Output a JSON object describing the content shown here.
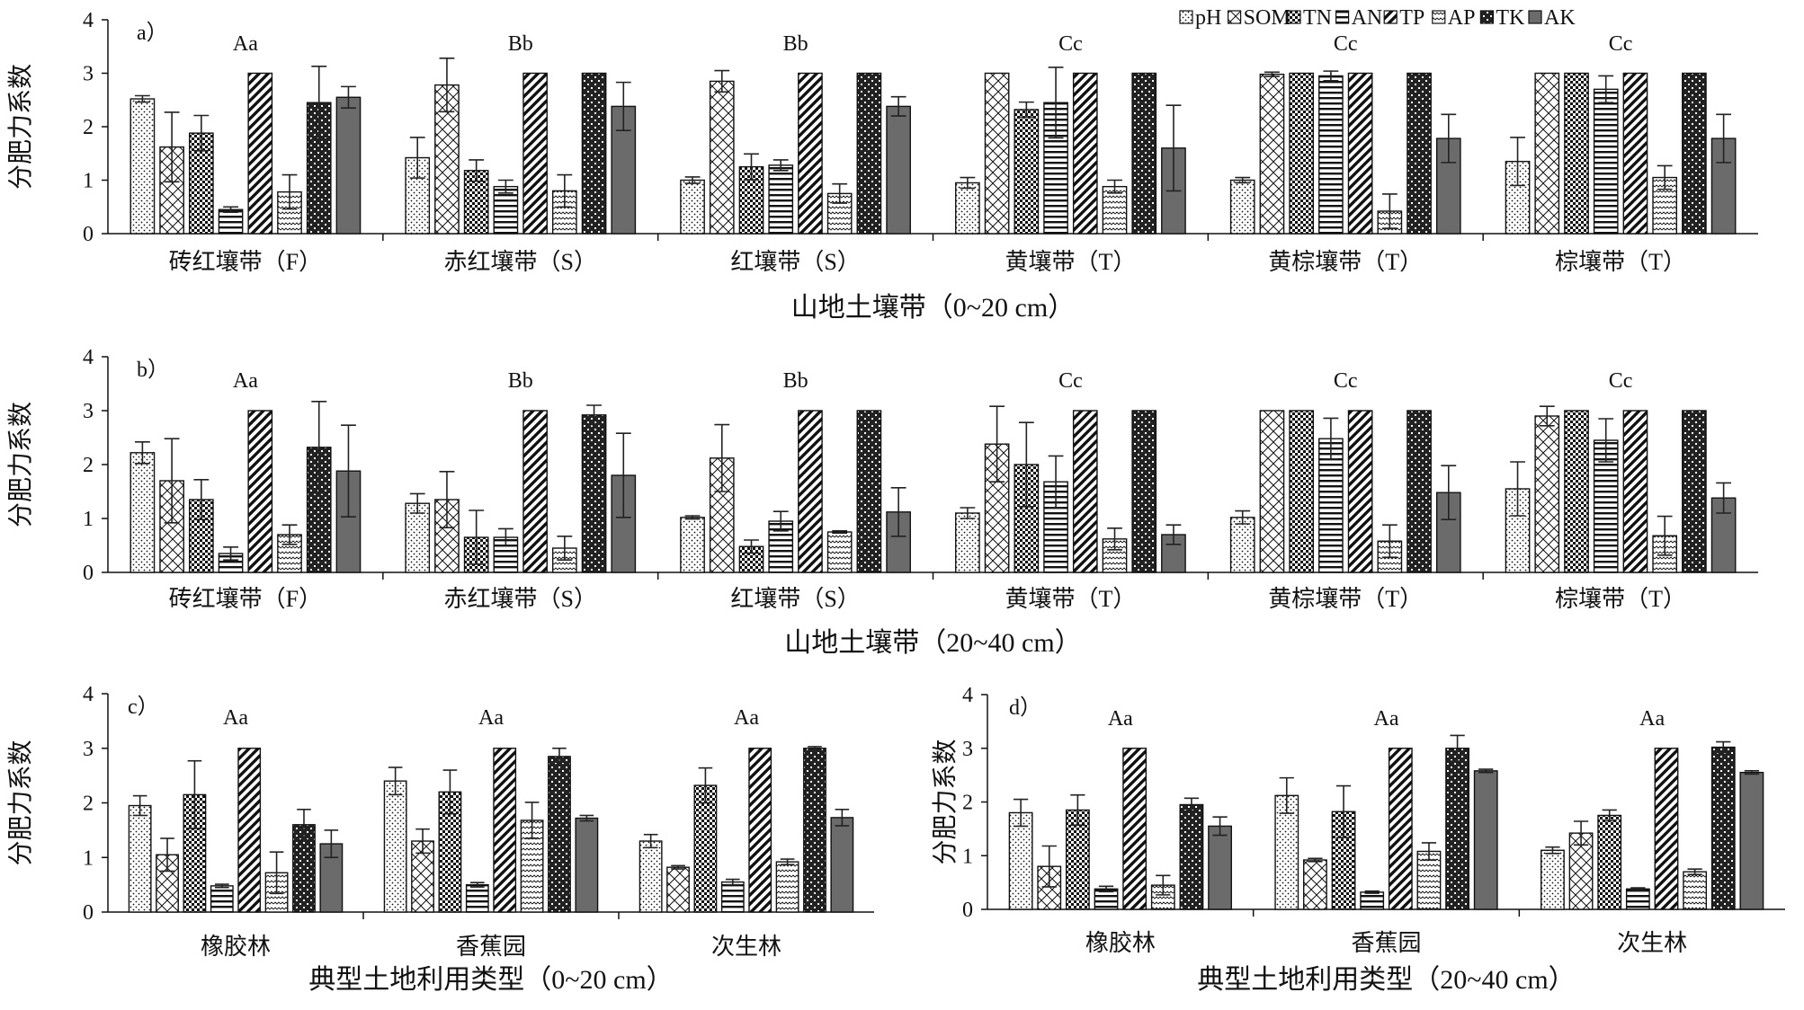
{
  "legend": {
    "items": [
      {
        "key": "pH",
        "label": "pH",
        "pattern": "dots"
      },
      {
        "key": "SOM",
        "label": "SOM",
        "pattern": "cross"
      },
      {
        "key": "TN",
        "label": "TN",
        "pattern": "checker"
      },
      {
        "key": "AN",
        "label": "AN",
        "pattern": "hlines"
      },
      {
        "key": "TP",
        "label": "TP",
        "pattern": "diag"
      },
      {
        "key": "AP",
        "label": "AP",
        "pattern": "zigzag"
      },
      {
        "key": "TK",
        "label": "TK",
        "pattern": "checker2"
      },
      {
        "key": "AK",
        "label": "AK",
        "pattern": "solid"
      }
    ]
  },
  "colors": {
    "axis": "#111111",
    "solid": "#6b6b6b",
    "pattern_ink": "#111111",
    "background": "#ffffff"
  },
  "chart_data": [
    {
      "panel": "a",
      "type": "bar",
      "ylabel": "分肥力系数",
      "xlabel": "山地土壤带（0~20 cm）",
      "ylim": [
        0,
        4
      ],
      "yticks": [
        0,
        1,
        2,
        3,
        4
      ],
      "categories": [
        "砖红壤带（F）",
        "赤红壤带（S）",
        "红壤带（S）",
        "黄壤带（T）",
        "黄棕壤带（T）",
        "棕壤带（T）"
      ],
      "group_labels": [
        "Aa",
        "Bb",
        "Bb",
        "Cc",
        "Cc",
        "Cc"
      ],
      "series": [
        {
          "name": "pH",
          "values": [
            2.52,
            1.42,
            1.0,
            0.95,
            1.0,
            1.35
          ],
          "errors": [
            0.06,
            0.38,
            0.06,
            0.1,
            0.05,
            0.45
          ]
        },
        {
          "name": "SOM",
          "values": [
            1.62,
            2.78,
            2.85,
            3.0,
            2.98,
            3.0
          ],
          "errors": [
            0.65,
            0.5,
            0.2,
            0.0,
            0.04,
            0.0
          ]
        },
        {
          "name": "TN",
          "values": [
            1.88,
            1.18,
            1.25,
            2.32,
            3.0,
            3.0
          ],
          "errors": [
            0.33,
            0.2,
            0.24,
            0.14,
            0.0,
            0.0
          ]
        },
        {
          "name": "AN",
          "values": [
            0.45,
            0.88,
            1.28,
            2.45,
            2.95,
            2.7
          ],
          "errors": [
            0.05,
            0.12,
            0.1,
            0.66,
            0.09,
            0.25
          ]
        },
        {
          "name": "TP",
          "values": [
            3.0,
            3.0,
            3.0,
            3.0,
            3.0,
            3.0
          ],
          "errors": [
            0.0,
            0.0,
            0.0,
            0.0,
            0.0,
            0.0
          ]
        },
        {
          "name": "AP",
          "values": [
            0.78,
            0.8,
            0.75,
            0.88,
            0.42,
            1.05
          ],
          "errors": [
            0.32,
            0.3,
            0.18,
            0.12,
            0.32,
            0.22
          ]
        },
        {
          "name": "TK",
          "values": [
            2.45,
            3.0,
            3.0,
            3.0,
            3.0,
            3.0
          ],
          "errors": [
            0.68,
            0.0,
            0.0,
            0.0,
            0.0,
            0.0
          ]
        },
        {
          "name": "AK",
          "values": [
            2.55,
            2.38,
            2.38,
            1.6,
            1.78,
            1.78
          ],
          "errors": [
            0.2,
            0.45,
            0.18,
            0.8,
            0.45,
            0.45
          ]
        }
      ]
    },
    {
      "panel": "b",
      "type": "bar",
      "ylabel": "分肥力系数",
      "xlabel": "山地土壤带（20~40 cm）",
      "ylim": [
        0,
        4
      ],
      "yticks": [
        0,
        1,
        2,
        3,
        4
      ],
      "categories": [
        "砖红壤带（F）",
        "赤红壤带（S）",
        "红壤带（S）",
        "黄壤带（T）",
        "黄棕壤带（T）",
        "棕壤带（T）"
      ],
      "group_labels": [
        "Aa",
        "Bb",
        "Bb",
        "Cc",
        "Cc",
        "Cc"
      ],
      "series": [
        {
          "name": "pH",
          "values": [
            2.22,
            1.28,
            1.02,
            1.1,
            1.02,
            1.55
          ],
          "errors": [
            0.2,
            0.18,
            0.03,
            0.1,
            0.12,
            0.5
          ]
        },
        {
          "name": "SOM",
          "values": [
            1.7,
            1.35,
            2.12,
            2.38,
            3.0,
            2.9
          ],
          "errors": [
            0.78,
            0.52,
            0.62,
            0.7,
            0.0,
            0.18
          ]
        },
        {
          "name": "TN",
          "values": [
            1.35,
            0.65,
            0.48,
            2.0,
            3.0,
            3.0
          ],
          "errors": [
            0.37,
            0.5,
            0.12,
            0.78,
            0.0,
            0.0
          ]
        },
        {
          "name": "AN",
          "values": [
            0.35,
            0.65,
            0.95,
            1.68,
            2.48,
            2.45
          ],
          "errors": [
            0.12,
            0.16,
            0.18,
            0.48,
            0.38,
            0.4
          ]
        },
        {
          "name": "TP",
          "values": [
            3.0,
            3.0,
            3.0,
            3.0,
            3.0,
            3.0
          ],
          "errors": [
            0.0,
            0.0,
            0.0,
            0.0,
            0.0,
            0.0
          ]
        },
        {
          "name": "AP",
          "values": [
            0.7,
            0.45,
            0.75,
            0.62,
            0.58,
            0.68
          ],
          "errors": [
            0.18,
            0.22,
            0.02,
            0.2,
            0.3,
            0.36
          ]
        },
        {
          "name": "TK",
          "values": [
            2.32,
            2.92,
            3.0,
            3.0,
            3.0,
            3.0
          ],
          "errors": [
            0.85,
            0.18,
            0.0,
            0.0,
            0.0,
            0.0
          ]
        },
        {
          "name": "AK",
          "values": [
            1.88,
            1.8,
            1.12,
            0.7,
            1.48,
            1.38
          ],
          "errors": [
            0.85,
            0.78,
            0.45,
            0.18,
            0.5,
            0.28
          ]
        }
      ]
    },
    {
      "panel": "c",
      "type": "bar",
      "ylabel": "分肥力系数",
      "xlabel": "典型土地利用类型（0~20 cm）",
      "ylim": [
        0,
        4
      ],
      "yticks": [
        0,
        1,
        2,
        3,
        4
      ],
      "categories": [
        "橡胶林",
        "香蕉园",
        "次生林"
      ],
      "group_labels": [
        "Aa",
        "Aa",
        "Aa"
      ],
      "series": [
        {
          "name": "pH",
          "values": [
            1.95,
            2.4,
            1.3
          ],
          "errors": [
            0.18,
            0.25,
            0.12
          ]
        },
        {
          "name": "SOM",
          "values": [
            1.05,
            1.3,
            0.82
          ],
          "errors": [
            0.3,
            0.22,
            0.03
          ]
        },
        {
          "name": "TN",
          "values": [
            2.15,
            2.2,
            2.32
          ],
          "errors": [
            0.62,
            0.4,
            0.32
          ]
        },
        {
          "name": "AN",
          "values": [
            0.48,
            0.5,
            0.55
          ],
          "errors": [
            0.03,
            0.04,
            0.05
          ]
        },
        {
          "name": "TP",
          "values": [
            3.0,
            3.0,
            3.0
          ],
          "errors": [
            0.0,
            0.0,
            0.0
          ]
        },
        {
          "name": "AP",
          "values": [
            0.72,
            1.68,
            0.92
          ],
          "errors": [
            0.38,
            0.33,
            0.05
          ]
        },
        {
          "name": "TK",
          "values": [
            1.6,
            2.85,
            3.0
          ],
          "errors": [
            0.28,
            0.15,
            0.03
          ]
        },
        {
          "name": "AK",
          "values": [
            1.25,
            1.72,
            1.73
          ],
          "errors": [
            0.25,
            0.05,
            0.15
          ]
        }
      ]
    },
    {
      "panel": "d",
      "type": "bar",
      "ylabel": "分肥力系数",
      "xlabel": "典型土地利用类型（20~40 cm）",
      "ylim": [
        0,
        4
      ],
      "yticks": [
        0,
        1,
        2,
        3,
        4
      ],
      "categories": [
        "橡胶林",
        "香蕉园",
        "次生林"
      ],
      "group_labels": [
        "Aa",
        "Aa",
        "Aa"
      ],
      "series": [
        {
          "name": "pH",
          "values": [
            1.8,
            2.12,
            1.1
          ],
          "errors": [
            0.25,
            0.33,
            0.06
          ]
        },
        {
          "name": "SOM",
          "values": [
            0.8,
            0.92,
            1.42
          ],
          "errors": [
            0.38,
            0.03,
            0.22
          ]
        },
        {
          "name": "TN",
          "values": [
            1.85,
            1.82,
            1.75
          ],
          "errors": [
            0.28,
            0.48,
            0.1
          ]
        },
        {
          "name": "AN",
          "values": [
            0.38,
            0.32,
            0.38
          ],
          "errors": [
            0.05,
            0.02,
            0.02
          ]
        },
        {
          "name": "TP",
          "values": [
            3.0,
            3.0,
            3.0
          ],
          "errors": [
            0.0,
            0.0,
            0.0
          ]
        },
        {
          "name": "AP",
          "values": [
            0.45,
            1.08,
            0.7
          ],
          "errors": [
            0.18,
            0.16,
            0.05
          ]
        },
        {
          "name": "TK",
          "values": [
            1.95,
            3.0,
            3.02
          ],
          "errors": [
            0.12,
            0.24,
            0.1
          ]
        },
        {
          "name": "AK",
          "values": [
            1.55,
            2.58,
            2.55
          ],
          "errors": [
            0.17,
            0.03,
            0.03
          ]
        }
      ]
    }
  ]
}
